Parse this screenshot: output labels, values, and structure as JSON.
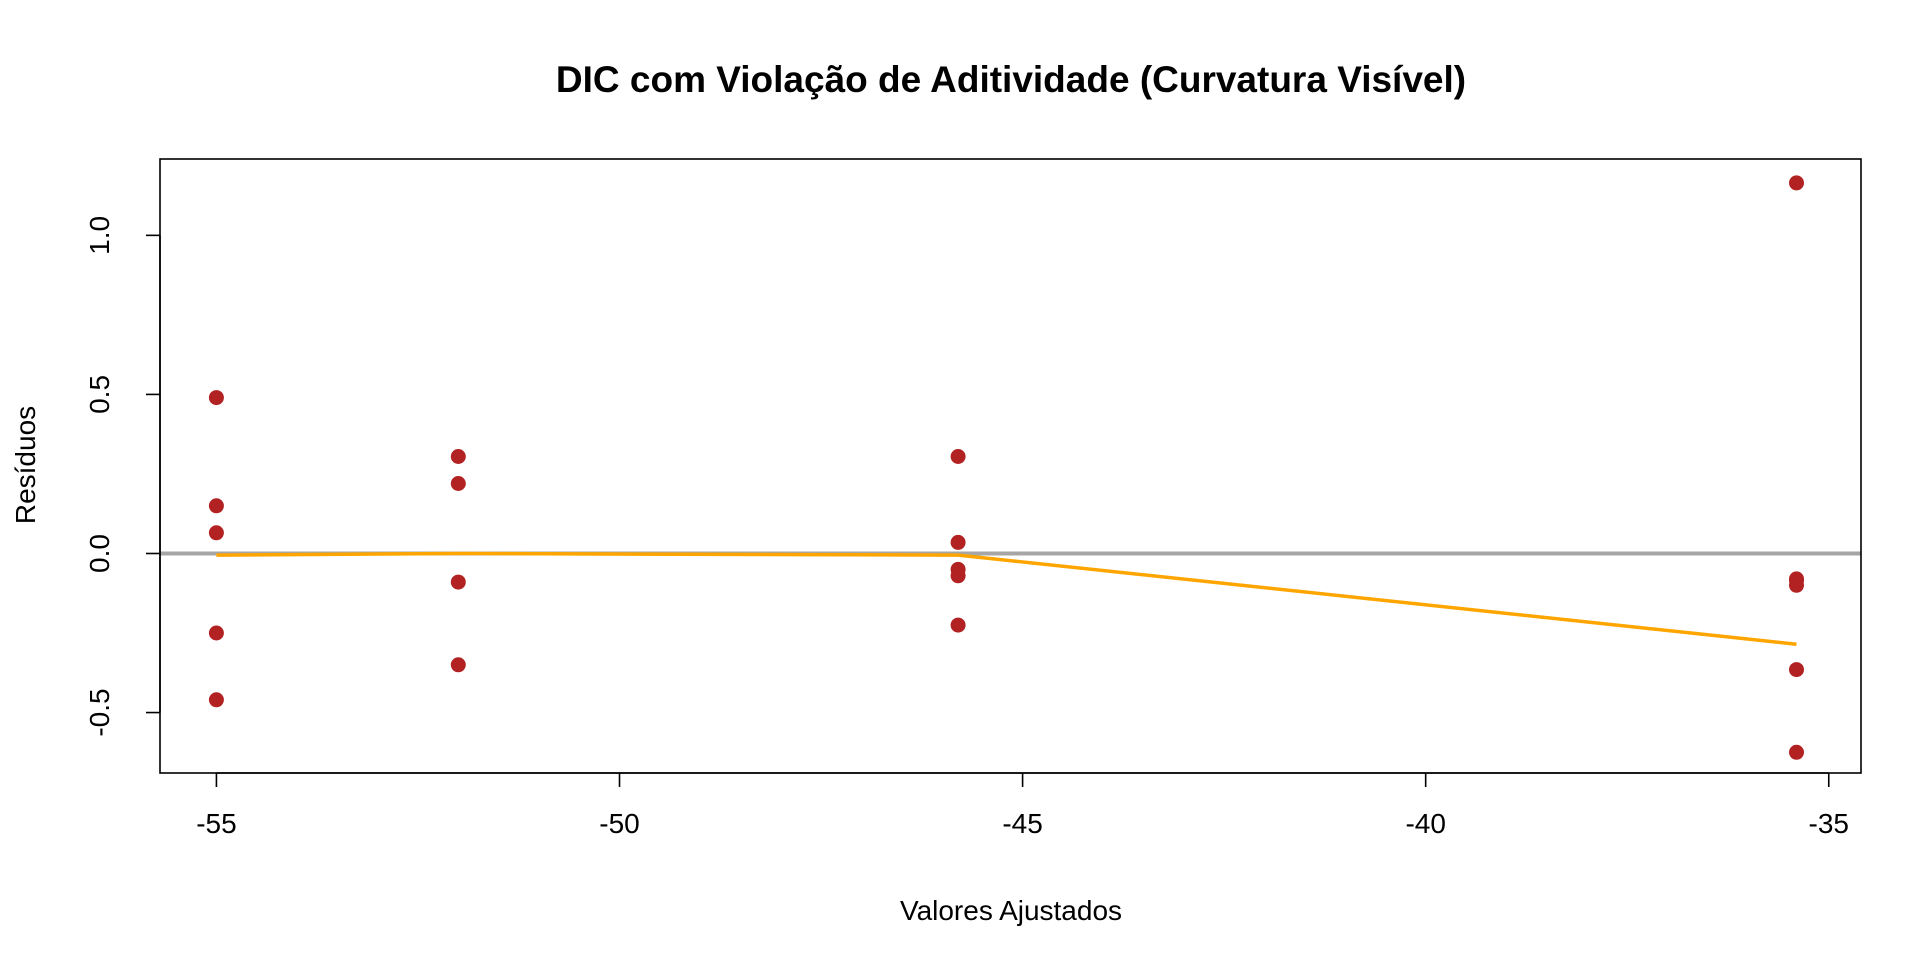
{
  "chart_data": {
    "type": "scatter",
    "title": "DIC com Violação de Aditividade (Curvatura Visível)",
    "xlabel": "Valores Ajustados",
    "ylabel": "Resíduos",
    "xlim": [
      -55.7,
      -34.6
    ],
    "ylim": [
      -0.69,
      1.24
    ],
    "xticks": [
      -55,
      -50,
      -45,
      -40,
      -35
    ],
    "yticks": [
      -0.5,
      0.0,
      0.5,
      1.0
    ],
    "xtick_labels": [
      "-55",
      "-50",
      "-45",
      "-40",
      "-35"
    ],
    "ytick_labels": [
      "-0.5",
      "0.0",
      "0.5",
      "1.0"
    ],
    "grid": false,
    "reference_line": {
      "y": 0,
      "color": "#a6a6a6"
    },
    "points": {
      "color": "#b22222",
      "x": [
        -55.0,
        -55.0,
        -55.0,
        -55.0,
        -55.0,
        -52.0,
        -52.0,
        -52.0,
        -52.0,
        -45.8,
        -45.8,
        -45.8,
        -45.8,
        -45.8,
        -35.4,
        -35.4,
        -35.4,
        -35.4,
        -35.4,
        -35.4
      ],
      "y": [
        0.49,
        0.15,
        0.065,
        -0.25,
        -0.46,
        0.305,
        0.22,
        -0.09,
        -0.35,
        0.305,
        0.035,
        -0.05,
        -0.07,
        -0.225,
        1.165,
        -0.085,
        -0.1,
        -0.365,
        -0.625,
        -0.08
      ]
    },
    "smooth_line": {
      "color": "#ffa500",
      "x": [
        -55.0,
        -52.0,
        -45.8,
        -35.4
      ],
      "y": [
        -0.005,
        0.0,
        -0.005,
        -0.285
      ]
    }
  }
}
